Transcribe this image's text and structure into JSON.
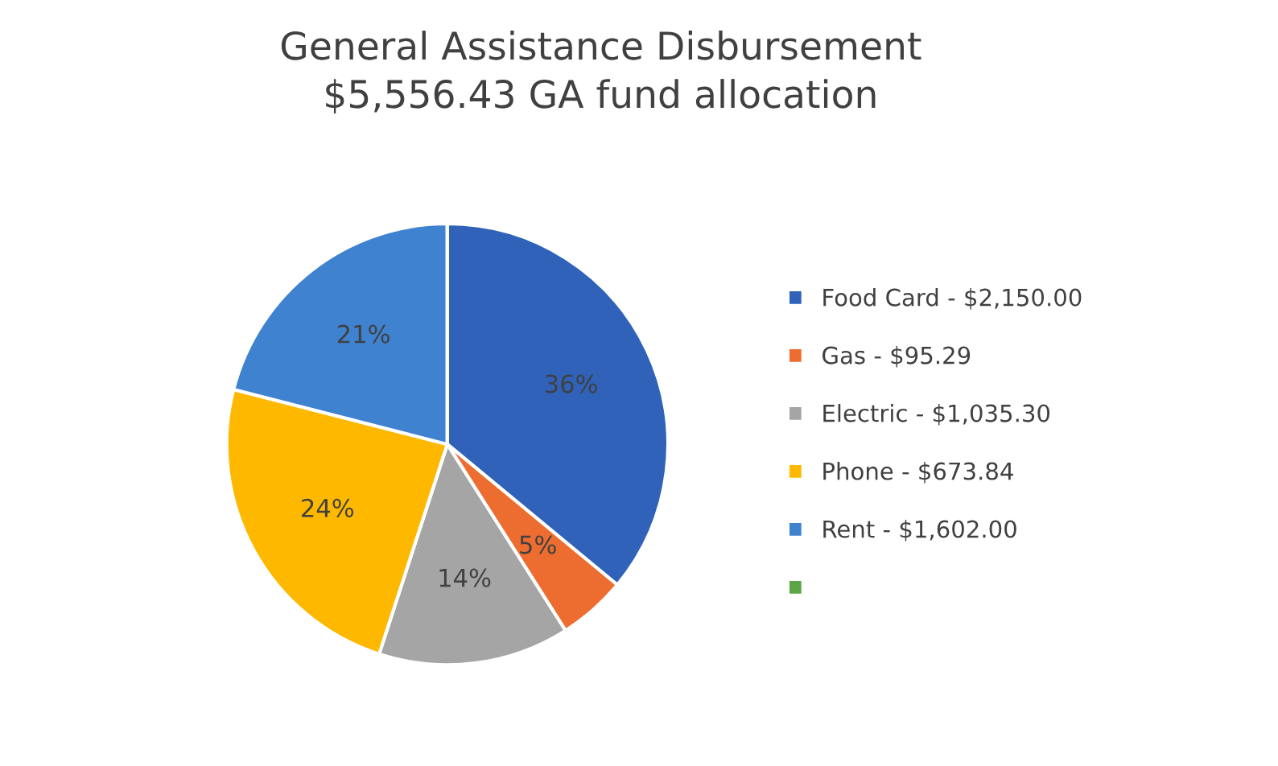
{
  "chart_data": {
    "type": "pie",
    "title": "General Assistance Disbursement\n$5,556.43 GA fund allocation",
    "categories": [
      "Food Card - $2,150.00",
      "Gas - $95.29",
      "Electric - $1,035.30",
      "Phone - $673.84",
      "Rent - $1,602.00",
      null
    ],
    "values": [
      36,
      5,
      14,
      24,
      21,
      0
    ],
    "value_labels": [
      "36%",
      "5%",
      "14%",
      "24%",
      "21%",
      null
    ],
    "colors": [
      "#2f62b8",
      "#ed6d31",
      "#a5a5a5",
      "#ffb800",
      "#3f82d0",
      "#5aa645"
    ],
    "legend": "right"
  }
}
